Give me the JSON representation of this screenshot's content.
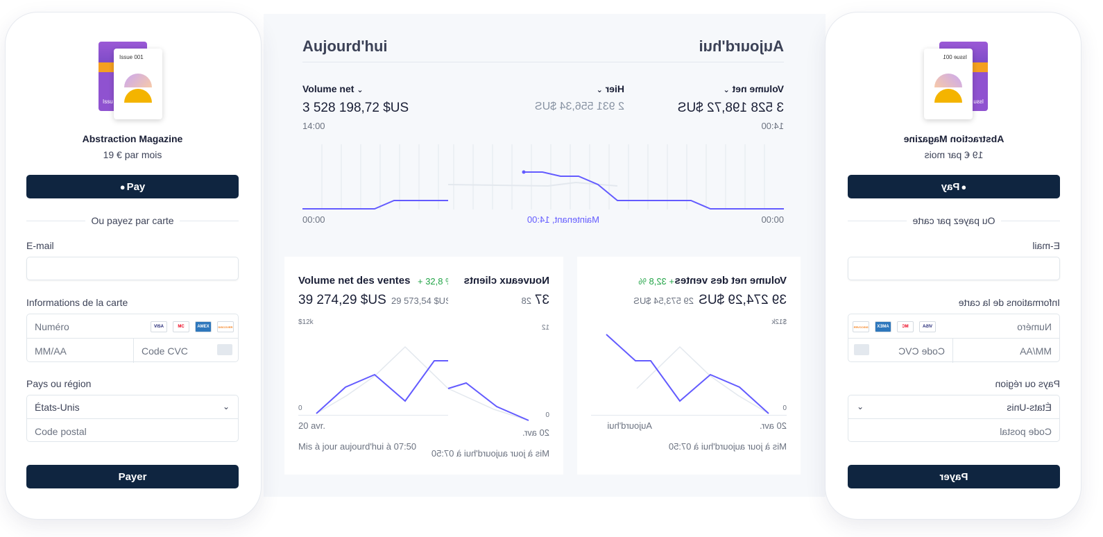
{
  "checkout": {
    "product_issue": "Issue 001",
    "product_back_text": "Issu",
    "product_name": "Abstraction Magazine",
    "product_price": "19 € par mois",
    "apple_pay_label": "Pay",
    "or_card": "Ou payez par carte",
    "email_label": "E-mail",
    "email_value": "",
    "card_info_label": "Informations de la carte",
    "card_number_placeholder": "Numéro",
    "expiry_placeholder": "MM/AA",
    "cvc_placeholder": "Code CVC",
    "card_brands": [
      "VISA",
      "MC",
      "AMEX",
      "DISCOVER"
    ],
    "country_label": "Pays ou région",
    "country_value": "États-Unis",
    "postal_placeholder": "Code postal",
    "pay_button": "Payer"
  },
  "dashboard": {
    "title": "Aujourd'hui",
    "metric_label": "Volume net",
    "metric_value": "3 528 198,72 $US",
    "metric_time": "14:00",
    "compare_label": "Hier",
    "compare_value": "2 931 556,34 $US",
    "axis_start": "00:00",
    "axis_end": "00:00",
    "now_label": "Maintenant, 14:00",
    "sales_card": {
      "title": "Volume net des ventes",
      "change": "+ 32,8 %",
      "value": "39 274,29 $US",
      "previous": "29 573,54 $US",
      "y_max": "$12k",
      "y_min": "0",
      "x_start": "20 avr.",
      "x_end": "Aujourd'hui",
      "updated": "Mis à jour aujourd'hui à 07:50"
    },
    "customers_card": {
      "title": "Nouveaux clients",
      "value": "37",
      "previous": "28",
      "y_max": "12",
      "y_min": "0",
      "x_start": "20 avr.",
      "updated": "Mis à jour aujourd'hui à 07:50"
    }
  },
  "colors": {
    "navy": "#0f2540",
    "purple": "#635bff",
    "green": "#22a447"
  }
}
